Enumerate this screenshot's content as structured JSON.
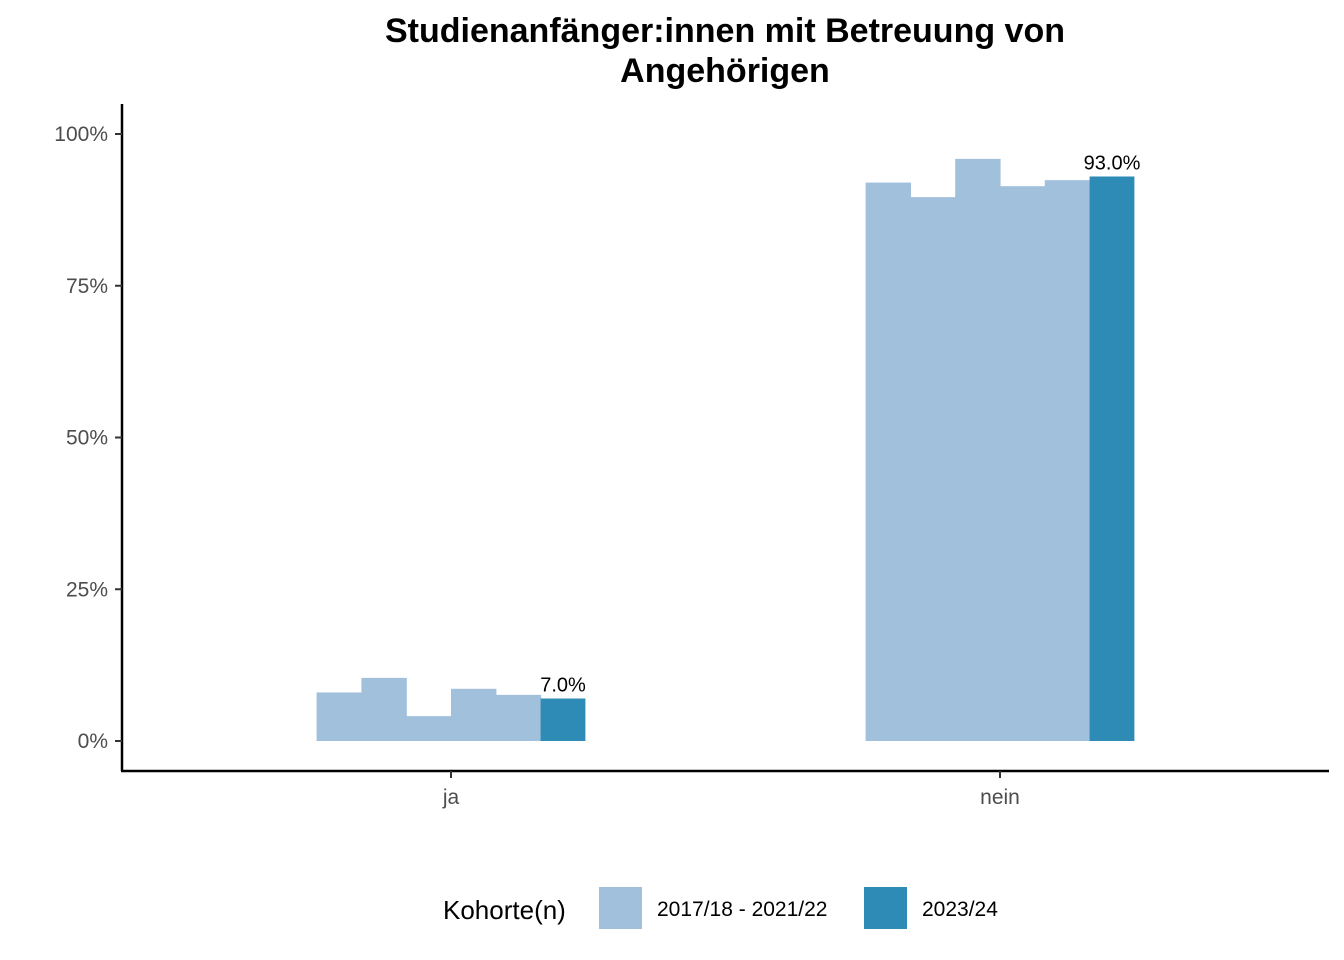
{
  "chart_data": {
    "type": "bar",
    "title_lines": [
      "Studienanfänger:innen mit Betreuung von",
      "Angehörigen"
    ],
    "xlabel": "",
    "ylabel": "",
    "categories": [
      "ja",
      "nein"
    ],
    "ylim": [
      0,
      105
    ],
    "yticks": [
      0,
      25,
      50,
      75,
      100
    ],
    "ytick_labels": [
      "0%",
      "25%",
      "50%",
      "75%",
      "100%"
    ],
    "grid": false,
    "previous_cohorts": {
      "name": "2017/18 - 2021/22",
      "color": "#a1c0dc",
      "values_by_category": [
        [
          8.0,
          10.4,
          4.1,
          8.6,
          7.6
        ],
        [
          92.0,
          89.6,
          95.9,
          91.4,
          92.4
        ]
      ]
    },
    "current_cohort": {
      "name": "2023/24",
      "color": "#2e8bb6",
      "values": [
        7.0,
        93.0
      ],
      "labels": [
        "7.0%",
        "93.0%"
      ]
    },
    "legend": {
      "title": "Kohorte(n)",
      "position": "bottom",
      "items": [
        {
          "label": "2017/18 - 2021/22",
          "color": "#a1c0dc"
        },
        {
          "label": "2023/24",
          "color": "#2e8bb6"
        }
      ]
    }
  }
}
